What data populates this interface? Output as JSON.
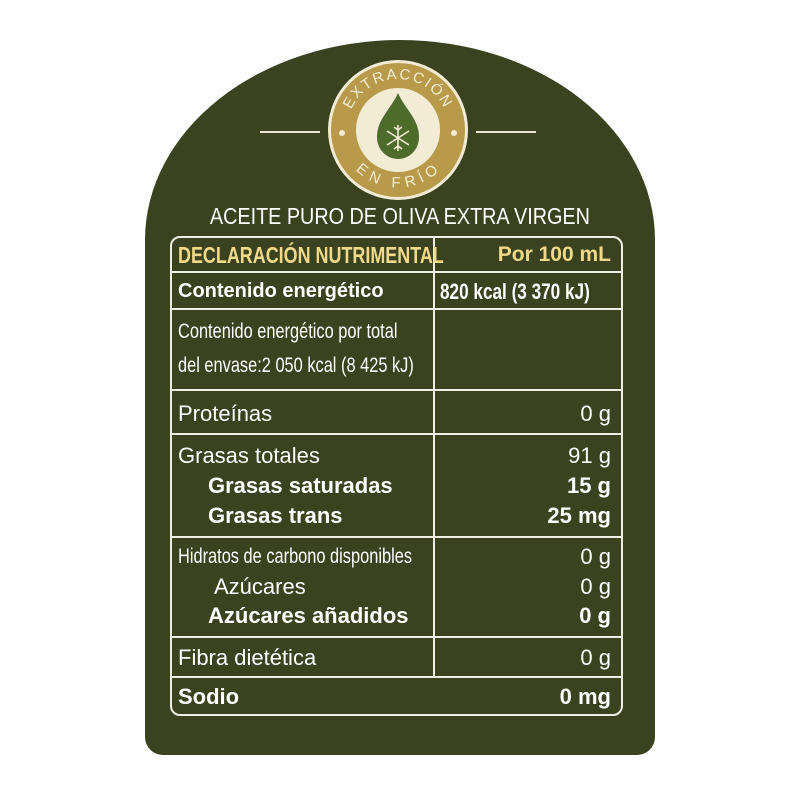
{
  "badge": {
    "top_text": "EXTRACCIÓN",
    "bottom_text": "EN FRÍO",
    "icon": "snowflake-drop-icon"
  },
  "title": "ACEITE PURO DE OLIVA EXTRA VIRGEN",
  "table": {
    "header": {
      "label": "DECLARACIÓN NUTRIMENTAL",
      "value": "Por 100 mL"
    },
    "energy": {
      "label": "Contenido energético",
      "value": "820 kcal (3 370 kJ)"
    },
    "energy_total": {
      "line1": "Contenido energético por total",
      "line2": "del envase:2 050 kcal (8 425 kJ)"
    },
    "proteins": {
      "label": "Proteínas",
      "value": "0 g"
    },
    "fats": {
      "label": "Grasas totales",
      "value": "91 g"
    },
    "sat_fats": {
      "label": "Grasas saturadas",
      "value": "15 g"
    },
    "trans_fats": {
      "label": "Grasas trans",
      "value": "25 mg"
    },
    "carbs": {
      "label": "Hidratos de carbono disponibles",
      "value": "0 g"
    },
    "sugars": {
      "label": "Azúcares",
      "value": "0 g"
    },
    "added_sugars": {
      "label": "Azúcares añadidos",
      "value": "0 g"
    },
    "fiber": {
      "label": "Fibra dietética",
      "value": "0 g"
    },
    "sodium": {
      "label": "Sodio",
      "value": "0 mg"
    }
  },
  "colors": {
    "background": "#3b4220",
    "gold": "#b99a4a",
    "header_text": "#f1d98a"
  }
}
